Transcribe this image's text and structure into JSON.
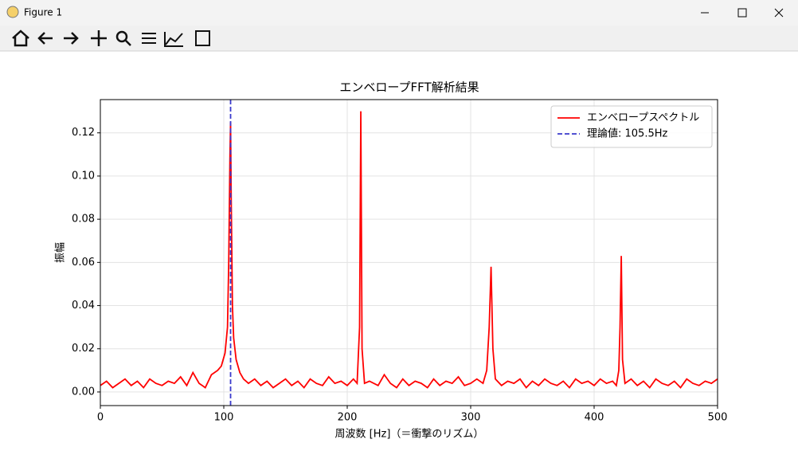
{
  "window": {
    "title": "Figure 1"
  },
  "chart_data": {
    "type": "line",
    "title": "エンベロープFFT解析結果",
    "x_label": "周波数 [Hz]（＝衝撃のリズム）",
    "y_label": "振幅",
    "xlim": [
      0,
      500
    ],
    "ylim": [
      -0.0063,
      0.1354
    ],
    "xticks": [
      0,
      100,
      200,
      300,
      400,
      500
    ],
    "yticks": [
      {
        "value": 0,
        "label": "0.00"
      },
      {
        "value": 0.02,
        "label": "0.02"
      },
      {
        "value": 0.04,
        "label": "0.04"
      },
      {
        "value": 0.06,
        "label": "0.06"
      },
      {
        "value": 0.08,
        "label": "0.08"
      },
      {
        "value": 0.1,
        "label": "0.10"
      },
      {
        "value": 0.12,
        "label": "0.12"
      }
    ],
    "grid": true,
    "legend": "upper right",
    "series": [
      {
        "name": "エンベロープスペクトル",
        "color": "#ff0000",
        "x": [
          0,
          5,
          10,
          15,
          20,
          25,
          30,
          35,
          40,
          45,
          50,
          55,
          60,
          65,
          70,
          75,
          80,
          85,
          90,
          95,
          98,
          101,
          103,
          104,
          105,
          105.5,
          106,
          107,
          108,
          110,
          113,
          116,
          120,
          125,
          130,
          135,
          140,
          145,
          150,
          155,
          160,
          165,
          170,
          175,
          180,
          185,
          190,
          195,
          200,
          205,
          208,
          210,
          211,
          212,
          214,
          218,
          225,
          230,
          235,
          240,
          245,
          250,
          255,
          260,
          265,
          270,
          275,
          280,
          285,
          290,
          295,
          300,
          305,
          310,
          313,
          315,
          316.5,
          318,
          320,
          325,
          330,
          335,
          340,
          345,
          350,
          355,
          360,
          365,
          370,
          375,
          380,
          385,
          390,
          395,
          400,
          405,
          410,
          415,
          418,
          420,
          421,
          422,
          423,
          425,
          430,
          435,
          440,
          445,
          450,
          455,
          460,
          465,
          470,
          475,
          480,
          485,
          490,
          495,
          500
        ],
        "values": [
          0.003,
          0.005,
          0.002,
          0.004,
          0.006,
          0.003,
          0.005,
          0.002,
          0.006,
          0.004,
          0.003,
          0.005,
          0.004,
          0.007,
          0.003,
          0.009,
          0.004,
          0.002,
          0.008,
          0.01,
          0.012,
          0.018,
          0.03,
          0.06,
          0.11,
          0.125,
          0.09,
          0.04,
          0.025,
          0.015,
          0.009,
          0.006,
          0.004,
          0.006,
          0.003,
          0.005,
          0.002,
          0.004,
          0.006,
          0.003,
          0.005,
          0.002,
          0.006,
          0.004,
          0.003,
          0.007,
          0.004,
          0.005,
          0.003,
          0.006,
          0.004,
          0.03,
          0.13,
          0.02,
          0.004,
          0.005,
          0.003,
          0.008,
          0.004,
          0.002,
          0.006,
          0.003,
          0.005,
          0.004,
          0.002,
          0.006,
          0.003,
          0.005,
          0.004,
          0.007,
          0.003,
          0.004,
          0.006,
          0.004,
          0.01,
          0.03,
          0.058,
          0.02,
          0.006,
          0.003,
          0.005,
          0.004,
          0.006,
          0.002,
          0.005,
          0.003,
          0.006,
          0.004,
          0.003,
          0.005,
          0.002,
          0.006,
          0.004,
          0.005,
          0.003,
          0.006,
          0.004,
          0.005,
          0.003,
          0.01,
          0.03,
          0.063,
          0.015,
          0.004,
          0.006,
          0.003,
          0.005,
          0.002,
          0.006,
          0.004,
          0.003,
          0.005,
          0.002,
          0.006,
          0.004,
          0.003,
          0.005,
          0.004,
          0.006
        ]
      }
    ],
    "vlines": [
      {
        "name": "理論値: 105.5Hz",
        "x": 105.5,
        "color": "#3a3acc"
      }
    ]
  }
}
